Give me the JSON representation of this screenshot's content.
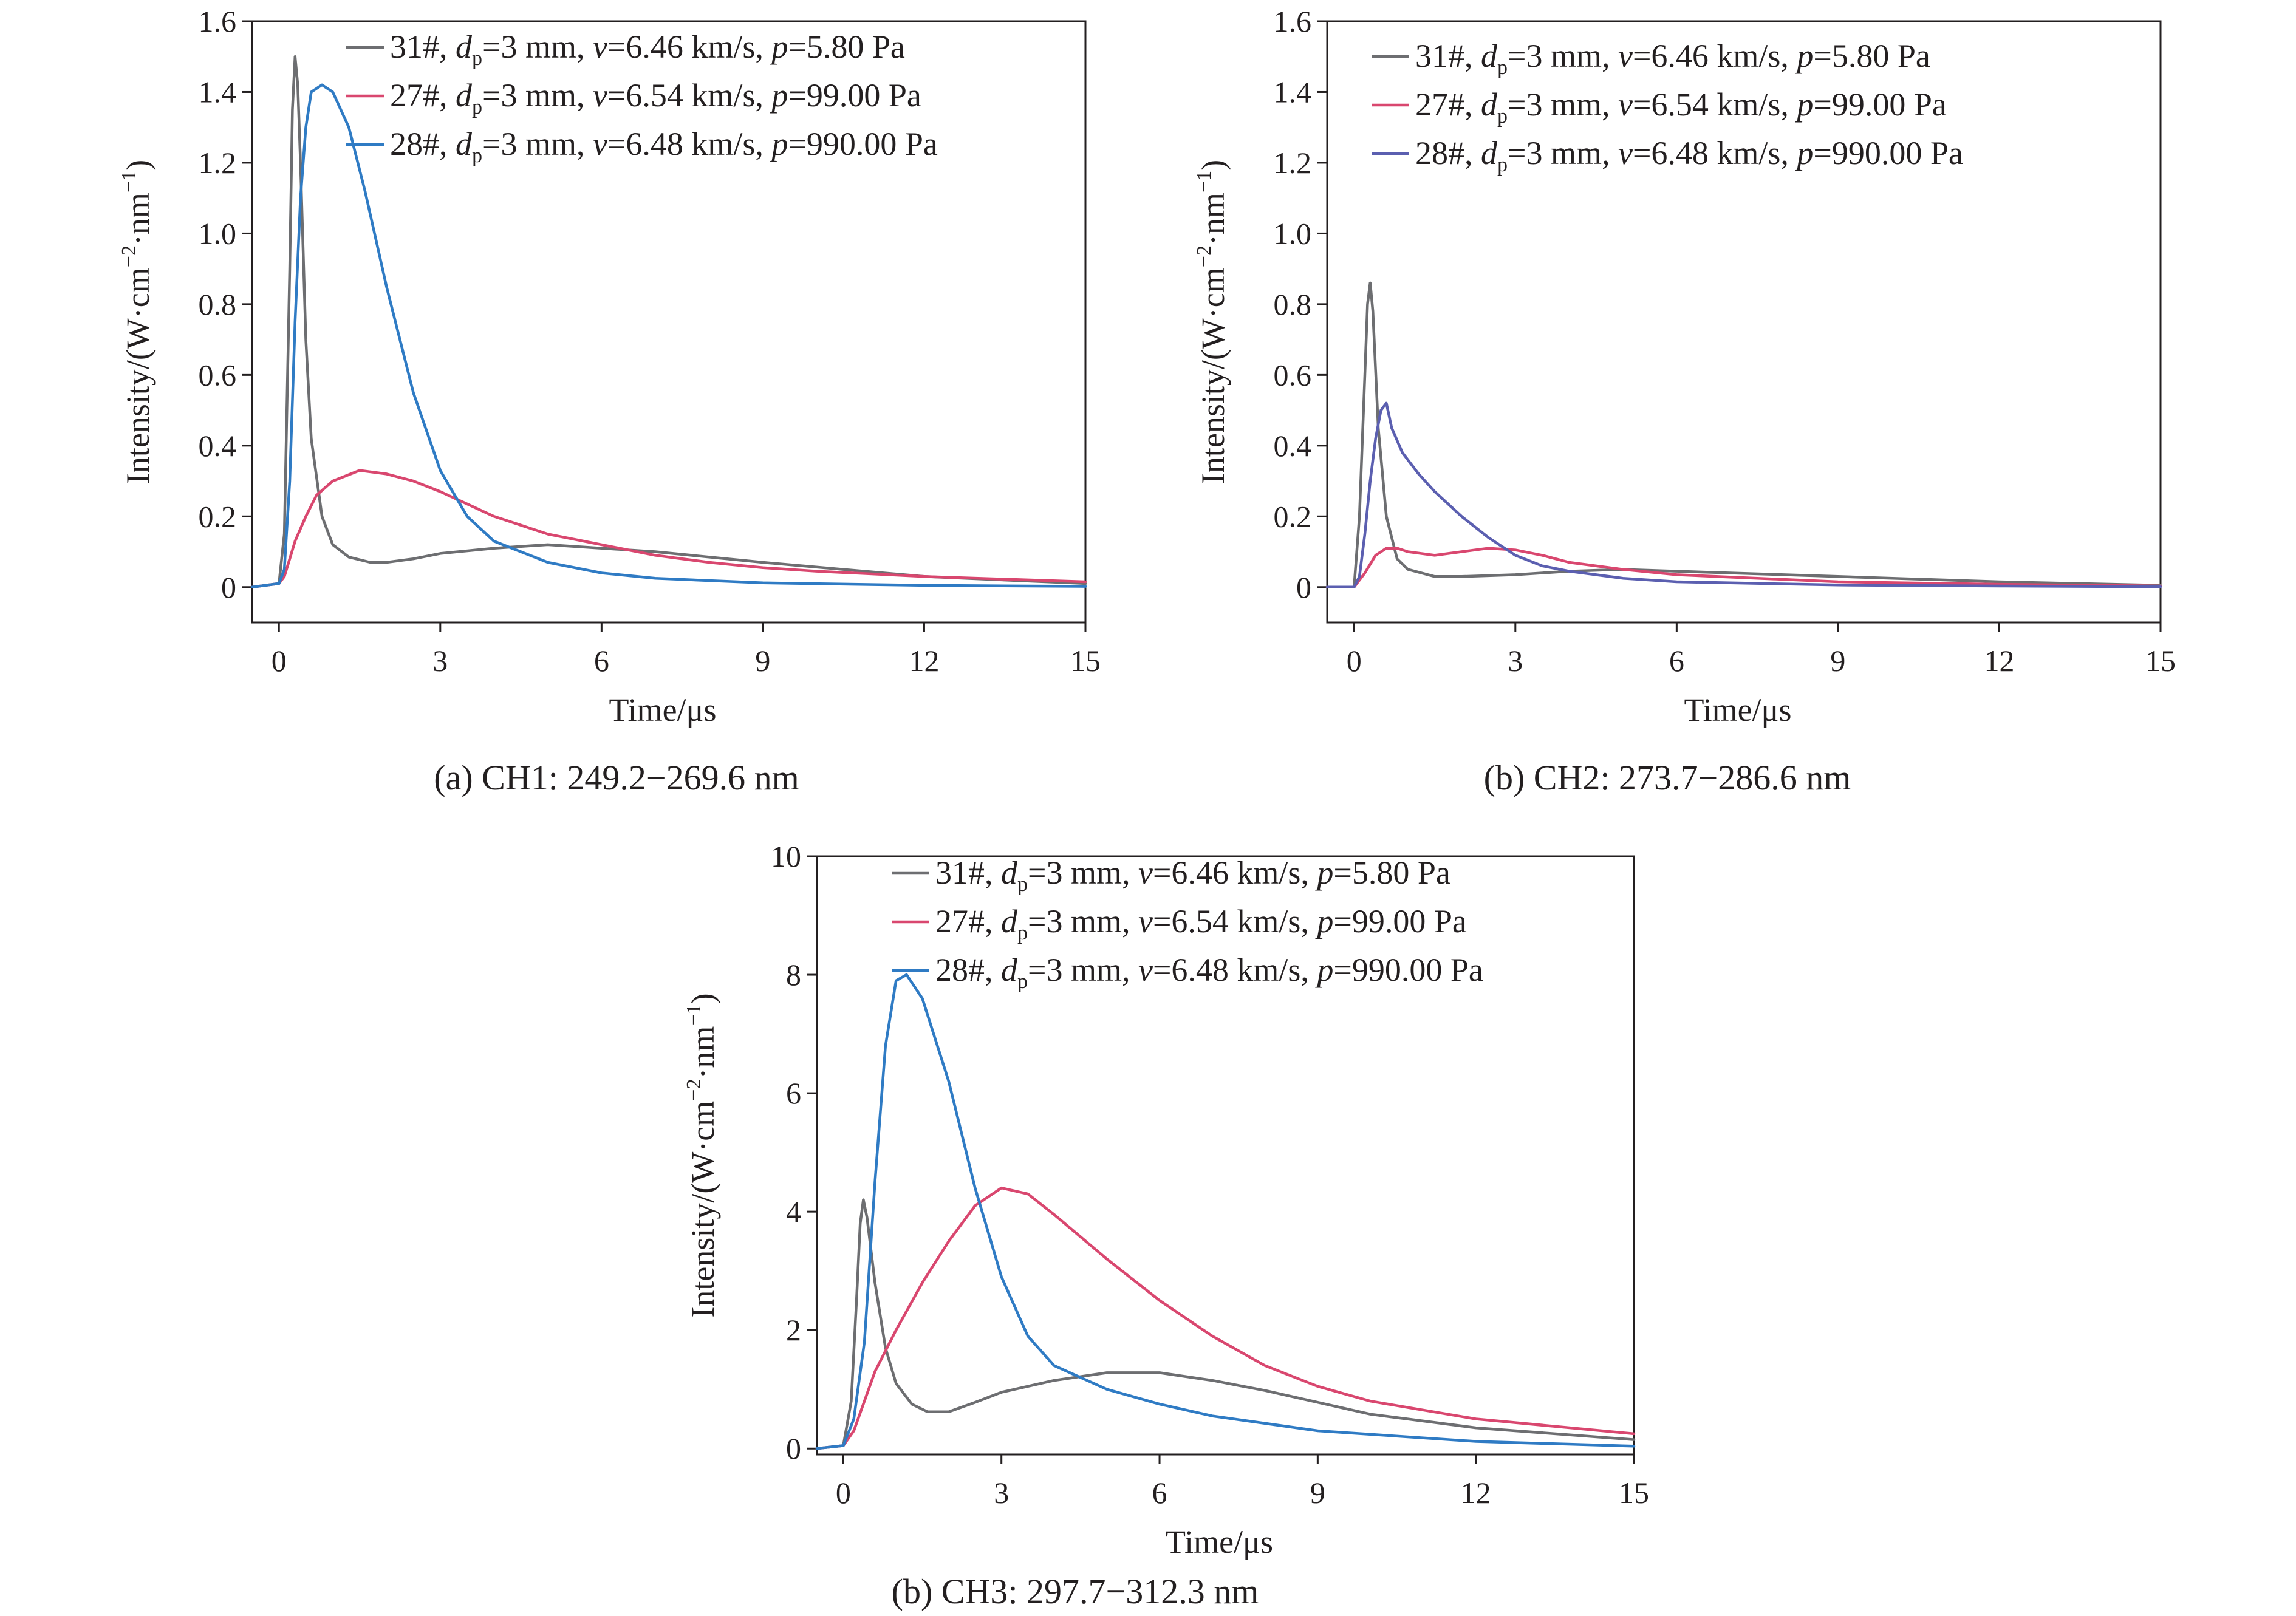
{
  "legend_entries": [
    {
      "id": "31#",
      "dp_value": "=3 mm, ",
      "v_value": "=6.46 km/s, ",
      "p_value": "=5.80 Pa"
    },
    {
      "id": "27#",
      "dp_value": "=3 mm, ",
      "v_value": "=6.54 km/s, ",
      "p_value": "=99.00 Pa"
    },
    {
      "id": "28#",
      "dp_value": "=3 mm, ",
      "v_value": "=6.48 km/s, ",
      "p_value": "=990.00 Pa"
    }
  ],
  "legend_symbols": {
    "d": "d",
    "p_sub": "p",
    "v": "v",
    "p": "p"
  },
  "ylabel_parts": {
    "main": "Intensity/(W·cm",
    "exp1": "−2",
    "mid": "·nm",
    "exp2": "−1",
    "close": ")"
  },
  "colors": {
    "31#": "#6d6e71",
    "27#": "#d9476f",
    "28#": "#2f7bc4",
    "28#_b": "#5b5fb0"
  },
  "chart_data": [
    {
      "type": "line",
      "caption": "(a) CH1: 249.2−269.6 nm",
      "xlabel": "Time/μs",
      "ylabel": "Intensity/(W·cm−2·nm−1)",
      "xlim": [
        -0.5,
        15
      ],
      "ylim": [
        -0.1,
        1.6
      ],
      "xticks": [
        0,
        3,
        6,
        9,
        12,
        15
      ],
      "yticks": [
        0,
        0.2,
        0.4,
        0.6,
        0.8,
        1.0,
        1.2,
        1.4,
        1.6
      ],
      "ytick_labels": [
        "0",
        "0.2",
        "0.4",
        "0.6",
        "0.8",
        "1.0",
        "1.2",
        "1.4",
        "1.6"
      ],
      "legend_position": "top-right",
      "series": [
        {
          "name": "31#, dp=3 mm, v=6.46 km/s, p=5.80 Pa",
          "color_key": "31#",
          "x": [
            -0.5,
            0.0,
            0.1,
            0.2,
            0.25,
            0.3,
            0.35,
            0.4,
            0.5,
            0.6,
            0.8,
            1.0,
            1.3,
            1.7,
            2.0,
            2.5,
            3.0,
            4.0,
            5.0,
            6.0,
            7.0,
            9.0,
            12.0,
            15.0
          ],
          "y": [
            0.0,
            0.01,
            0.15,
            0.9,
            1.35,
            1.5,
            1.42,
            1.2,
            0.7,
            0.42,
            0.2,
            0.12,
            0.085,
            0.07,
            0.07,
            0.08,
            0.095,
            0.11,
            0.12,
            0.11,
            0.1,
            0.07,
            0.03,
            0.01
          ]
        },
        {
          "name": "27#, dp=3 mm, v=6.54 km/s, p=99.00 Pa",
          "color_key": "27#",
          "x": [
            -0.5,
            0.0,
            0.1,
            0.2,
            0.3,
            0.5,
            0.7,
            1.0,
            1.5,
            2.0,
            2.5,
            3.0,
            4.0,
            5.0,
            6.0,
            7.0,
            8.0,
            9.0,
            10.0,
            12.0,
            15.0
          ],
          "y": [
            0.0,
            0.01,
            0.03,
            0.08,
            0.13,
            0.2,
            0.26,
            0.3,
            0.33,
            0.32,
            0.3,
            0.27,
            0.2,
            0.15,
            0.12,
            0.09,
            0.07,
            0.055,
            0.045,
            0.03,
            0.015
          ]
        },
        {
          "name": "28#, dp=3 mm, v=6.48 km/s, p=990.00 Pa",
          "color_key": "28#",
          "x": [
            -0.5,
            0.0,
            0.1,
            0.2,
            0.3,
            0.4,
            0.5,
            0.6,
            0.8,
            1.0,
            1.3,
            1.6,
            2.0,
            2.5,
            3.0,
            3.5,
            4.0,
            5.0,
            6.0,
            7.0,
            9.0,
            12.0,
            15.0
          ],
          "y": [
            0.0,
            0.01,
            0.05,
            0.3,
            0.75,
            1.1,
            1.3,
            1.4,
            1.42,
            1.4,
            1.3,
            1.12,
            0.85,
            0.55,
            0.33,
            0.2,
            0.13,
            0.07,
            0.04,
            0.025,
            0.012,
            0.005,
            0.002
          ]
        }
      ]
    },
    {
      "type": "line",
      "caption": "(b) CH2: 273.7−286.6 nm",
      "xlabel": "Time/μs",
      "ylabel": "Intensity/(W·cm−2·nm−1)",
      "xlim": [
        -0.5,
        15
      ],
      "ylim": [
        -0.1,
        1.6
      ],
      "xticks": [
        0,
        3,
        6,
        9,
        12,
        15
      ],
      "yticks": [
        0,
        0.2,
        0.4,
        0.6,
        0.8,
        1.0,
        1.2,
        1.4,
        1.6
      ],
      "ytick_labels": [
        "0",
        "0.2",
        "0.4",
        "0.6",
        "0.8",
        "1.0",
        "1.2",
        "1.4",
        "1.6"
      ],
      "legend_position": "top-right",
      "series": [
        {
          "name": "31#, dp=3 mm, v=6.46 km/s, p=5.80 Pa",
          "color_key": "31#",
          "x": [
            -0.5,
            0.0,
            0.1,
            0.2,
            0.25,
            0.3,
            0.35,
            0.45,
            0.6,
            0.8,
            1.0,
            1.5,
            2.0,
            3.0,
            4.0,
            5.0,
            6.0,
            9.0,
            12.0,
            15.0
          ],
          "y": [
            0.0,
            0.0,
            0.2,
            0.6,
            0.8,
            0.86,
            0.78,
            0.45,
            0.2,
            0.08,
            0.05,
            0.03,
            0.03,
            0.035,
            0.045,
            0.05,
            0.045,
            0.03,
            0.015,
            0.005
          ]
        },
        {
          "name": "27#, dp=3 mm, v=6.54 km/s, p=99.00 Pa",
          "color_key": "27#",
          "x": [
            -0.5,
            0.0,
            0.2,
            0.4,
            0.6,
            0.8,
            1.0,
            1.5,
            2.0,
            2.5,
            3.0,
            3.5,
            4.0,
            5.0,
            6.0,
            9.0,
            12.0,
            15.0
          ],
          "y": [
            0.0,
            0.0,
            0.04,
            0.09,
            0.11,
            0.11,
            0.1,
            0.09,
            0.1,
            0.11,
            0.105,
            0.09,
            0.07,
            0.05,
            0.035,
            0.015,
            0.008,
            0.003
          ]
        },
        {
          "name": "28#, dp=3 mm, v=6.48 km/s, p=990.00 Pa",
          "color_key": "28#",
          "x": [
            -0.5,
            0.0,
            0.1,
            0.2,
            0.3,
            0.4,
            0.5,
            0.6,
            0.7,
            0.9,
            1.2,
            1.5,
            2.0,
            2.5,
            3.0,
            3.5,
            4.0,
            5.0,
            6.0,
            9.0,
            12.0,
            15.0
          ],
          "y": [
            0.0,
            0.0,
            0.03,
            0.15,
            0.3,
            0.42,
            0.5,
            0.52,
            0.45,
            0.38,
            0.32,
            0.27,
            0.2,
            0.14,
            0.09,
            0.06,
            0.045,
            0.025,
            0.015,
            0.006,
            0.003,
            0.001
          ]
        }
      ]
    },
    {
      "type": "line",
      "caption": "(b) CH3: 297.7−312.3 nm",
      "xlabel": "Time/μs",
      "ylabel": "Intensity/(W·cm−2·nm−1)",
      "xlim": [
        -0.5,
        15
      ],
      "ylim": [
        -0.1,
        10
      ],
      "xticks": [
        0,
        3,
        6,
        9,
        12,
        15
      ],
      "yticks": [
        0,
        2,
        4,
        6,
        8,
        10
      ],
      "ytick_labels": [
        "0",
        "2",
        "4",
        "6",
        "8",
        "10"
      ],
      "legend_position": "top-right",
      "series": [
        {
          "name": "31#, dp=3 mm, v=6.46 km/s, p=5.80 Pa",
          "color_key": "31#",
          "x": [
            -0.5,
            0.0,
            0.15,
            0.25,
            0.32,
            0.38,
            0.45,
            0.6,
            0.8,
            1.0,
            1.3,
            1.6,
            2.0,
            2.5,
            3.0,
            4.0,
            5.0,
            6.0,
            7.0,
            8.0,
            9.0,
            10.0,
            12.0,
            15.0
          ],
          "y": [
            0.0,
            0.05,
            0.8,
            2.5,
            3.8,
            4.2,
            3.9,
            2.8,
            1.7,
            1.1,
            0.75,
            0.62,
            0.62,
            0.78,
            0.95,
            1.15,
            1.28,
            1.28,
            1.15,
            0.98,
            0.78,
            0.58,
            0.35,
            0.15
          ]
        },
        {
          "name": "27#, dp=3 mm, v=6.54 km/s, p=99.00 Pa",
          "color_key": "27#",
          "x": [
            -0.5,
            0.0,
            0.2,
            0.4,
            0.6,
            1.0,
            1.5,
            2.0,
            2.5,
            3.0,
            3.5,
            4.0,
            5.0,
            6.0,
            7.0,
            8.0,
            9.0,
            10.0,
            12.0,
            15.0
          ],
          "y": [
            0.0,
            0.05,
            0.3,
            0.8,
            1.3,
            2.0,
            2.8,
            3.5,
            4.1,
            4.4,
            4.3,
            3.95,
            3.2,
            2.5,
            1.9,
            1.4,
            1.05,
            0.8,
            0.5,
            0.25
          ]
        },
        {
          "name": "28#, dp=3 mm, v=6.48 km/s, p=990.00 Pa",
          "color_key": "28#",
          "x": [
            -0.5,
            0.0,
            0.2,
            0.4,
            0.6,
            0.8,
            1.0,
            1.2,
            1.5,
            2.0,
            2.5,
            3.0,
            3.5,
            4.0,
            5.0,
            6.0,
            7.0,
            9.0,
            12.0,
            15.0
          ],
          "y": [
            0.0,
            0.05,
            0.5,
            1.8,
            4.5,
            6.8,
            7.9,
            8.0,
            7.6,
            6.2,
            4.4,
            2.9,
            1.9,
            1.4,
            1.0,
            0.75,
            0.55,
            0.3,
            0.12,
            0.04
          ]
        }
      ]
    }
  ]
}
